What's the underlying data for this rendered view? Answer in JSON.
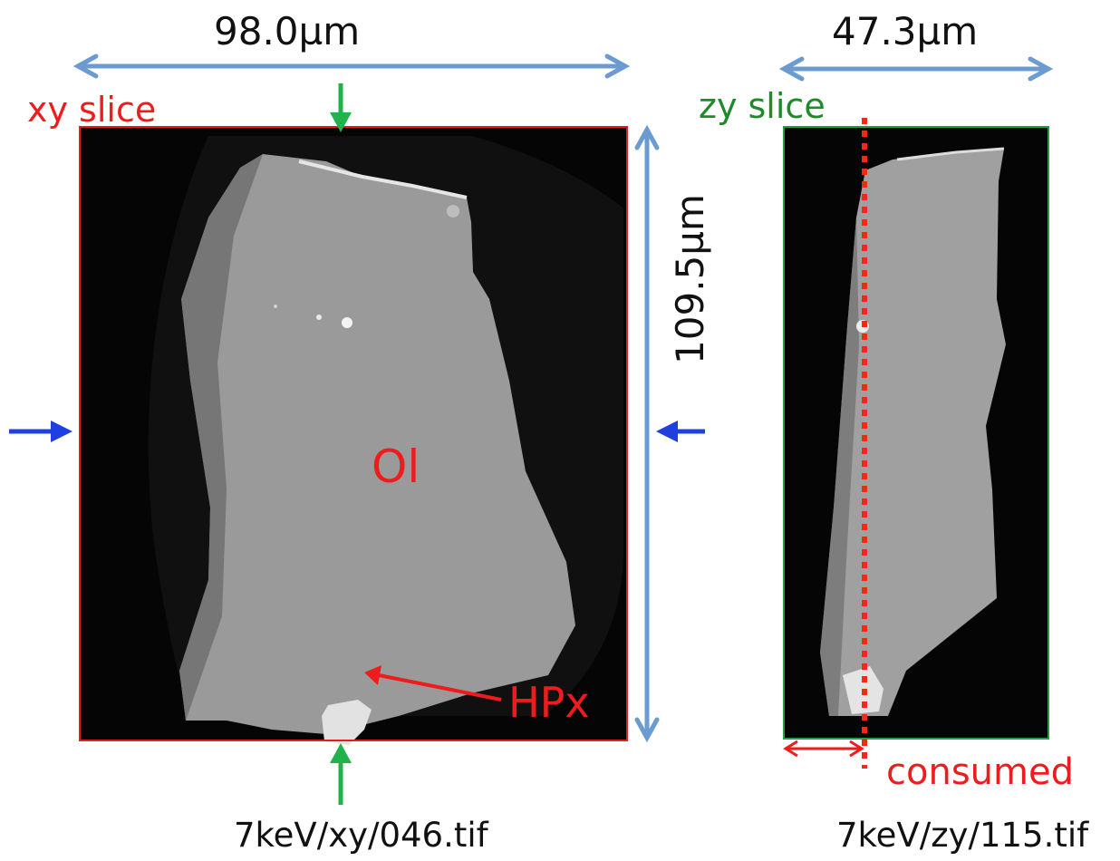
{
  "xy_panel": {
    "width_label": "98.0µm",
    "height_label": "109.5µm",
    "slice_label": "xy slice",
    "phase_main": "Ol",
    "phase_inclusion": "HPx",
    "filename": "7keV/xy/046.tif",
    "frame_color": "#e02020"
  },
  "zy_panel": {
    "width_label": "47.3µm",
    "slice_label": "zy slice",
    "consumed_label": "consumed",
    "filename": "7keV/zy/115.tif",
    "frame_color": "#20a040"
  },
  "colors": {
    "dimension_arrow": "#6b9bd1",
    "slice_marker_vertical": "#22b24c",
    "slice_marker_horizontal": "#1f3fe0",
    "annotation": "#ee1c1c",
    "crystal": "#9b9b9b",
    "background_image": "#050505"
  }
}
